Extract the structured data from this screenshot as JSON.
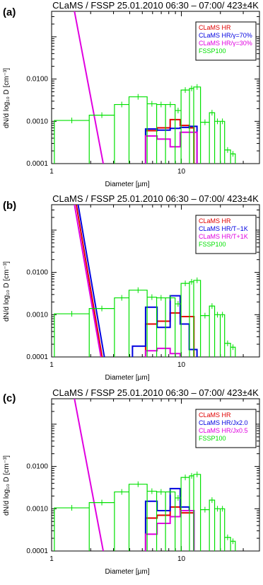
{
  "chart_data": [
    {
      "type": "line",
      "panel_label": "(a)",
      "title": "CLaMS / FSSP 25.01.2010 06:30 – 07:00/ 423±4K",
      "xlabel": "Diameter [µm]",
      "ylabel": "dN/d log₁₀ D [cm⁻³]",
      "xscale": "log",
      "yscale": "log",
      "xlim": [
        1,
        40
      ],
      "ylim": [
        0.0001,
        0.4
      ],
      "xticks": [
        {
          "value": 1,
          "label": "1"
        },
        {
          "value": 10,
          "label": "10"
        }
      ],
      "yticks": [
        {
          "value": 0.0001,
          "label": "0.0001"
        },
        {
          "value": 0.001,
          "label": "0.0010"
        },
        {
          "value": 0.01,
          "label": "0.0100"
        }
      ],
      "legend_position": "top-right",
      "series": [
        {
          "name": "CLaMS HR",
          "color": "#e00000",
          "kind": "step",
          "x": [
            5.3,
            5.3,
            6.5,
            6.5,
            8.2,
            8.2,
            9.8,
            9.8,
            11.5,
            11.5,
            12.5,
            12.5
          ],
          "y": [
            0.0001,
            0.0006,
            0.0006,
            0.0007,
            0.0007,
            0.0011,
            0.0011,
            0.0008,
            0.0008,
            0.0007,
            0.0007,
            0.0001
          ]
        },
        {
          "name": "CLaMS HR/γ=70%",
          "color": "#0000e0",
          "kind": "step",
          "x": [
            5.3,
            5.3,
            6.5,
            6.5,
            8.2,
            8.2,
            9.8,
            9.8,
            11.5,
            11.5,
            13.2,
            13.2
          ],
          "y": [
            0.0001,
            0.00066,
            0.00066,
            0.00062,
            0.00062,
            0.00068,
            0.00068,
            0.00072,
            0.00072,
            0.00076,
            0.00076,
            0.0001
          ]
        },
        {
          "name": "CLaMS HR/γ=30%",
          "color": "#e000e0",
          "kind": "step_and_curve",
          "curve_x": [
            1.5,
            2.5
          ],
          "curve_y": [
            0.4,
            0.0001
          ],
          "x": [
            5.3,
            5.3,
            6.5,
            6.5,
            8.2,
            8.2,
            9.8,
            9.8,
            11.5,
            11.5,
            13.2,
            13.2
          ],
          "y": [
            0.0001,
            0.00045,
            0.00045,
            0.00038,
            0.00038,
            0.00025,
            0.00025,
            0.00055,
            0.00055,
            0.00055,
            0.00055,
            0.0001
          ]
        },
        {
          "name": "FSSP100",
          "color": "#00e000",
          "kind": "fssp"
        }
      ]
    },
    {
      "type": "line",
      "panel_label": "(b)",
      "title": "CLaMS / FSSP 25.01.2010 06:30 – 07:00/ 423±4K",
      "xlabel": "Diameter [µm]",
      "ylabel": "dN/d log₁₀ D [cm⁻³]",
      "xscale": "log",
      "yscale": "log",
      "xlim": [
        1,
        40
      ],
      "ylim": [
        0.0001,
        0.4
      ],
      "xticks": [
        {
          "value": 1,
          "label": "1"
        },
        {
          "value": 10,
          "label": "10"
        }
      ],
      "yticks": [
        {
          "value": 0.0001,
          "label": "0.0001"
        },
        {
          "value": 0.001,
          "label": "0.0010"
        },
        {
          "value": 0.01,
          "label": "0.0100"
        }
      ],
      "legend_position": "top-right",
      "series": [
        {
          "name": "CLaMS HR",
          "color": "#e00000",
          "kind": "step_and_curve",
          "curve_x": [
            1.55,
            2.45
          ],
          "curve_y": [
            0.4,
            0.0001
          ],
          "x": [
            5.3,
            5.3,
            6.5,
            6.5,
            8.2,
            8.2,
            9.8,
            9.8,
            11.5,
            11.5,
            12.5,
            12.5
          ],
          "y": [
            0.0001,
            0.0006,
            0.0006,
            0.0007,
            0.0007,
            0.0011,
            0.0011,
            0.0009,
            0.0009,
            0.0009,
            0.0009,
            0.0001
          ]
        },
        {
          "name": "CLaMS HR/T−1K",
          "color": "#0000e0",
          "kind": "step_and_curve",
          "curve_x": [
            1.6,
            2.55
          ],
          "curve_y": [
            0.4,
            0.0001
          ],
          "x": [
            4.2,
            4.2,
            5.3,
            5.3,
            6.5,
            6.5,
            8.2,
            8.2,
            9.8,
            9.8,
            11.5,
            11.5,
            13.2,
            13.2
          ],
          "y": [
            0.0001,
            0.00018,
            0.00018,
            0.0015,
            0.0015,
            0.0005,
            0.0005,
            0.0028,
            0.0028,
            0.0006,
            0.0006,
            0.00015,
            0.00015,
            0.0001
          ]
        },
        {
          "name": "CLaMS HR/T+1K",
          "color": "#e000e0",
          "kind": "step_and_curve",
          "curve_x": [
            1.5,
            2.4
          ],
          "curve_y": [
            0.4,
            0.0001
          ],
          "x": [
            5.3,
            5.3,
            6.5,
            6.5,
            8.2,
            8.2,
            9.8,
            9.8
          ],
          "y": [
            0.0001,
            0.00014,
            0.00014,
            0.00016,
            0.00016,
            0.00012,
            0.00012,
            0.0001
          ]
        },
        {
          "name": "FSSP100",
          "color": "#00e000",
          "kind": "fssp"
        }
      ]
    },
    {
      "type": "line",
      "panel_label": "(c)",
      "title": "CLaMS / FSSP 25.01.2010 06:30 – 07:00/ 423±4K",
      "xlabel": "Diameter [µm]",
      "ylabel": "dN/d log₁₀ D [cm⁻³]",
      "xscale": "log",
      "yscale": "log",
      "xlim": [
        1,
        40
      ],
      "ylim": [
        0.0001,
        0.4
      ],
      "xticks": [
        {
          "value": 1,
          "label": "1"
        },
        {
          "value": 10,
          "label": "10"
        }
      ],
      "yticks": [
        {
          "value": 0.0001,
          "label": "0.0001"
        },
        {
          "value": 0.001,
          "label": "0.0010"
        },
        {
          "value": 0.01,
          "label": "0.0100"
        }
      ],
      "legend_position": "top-right",
      "series": [
        {
          "name": "CLaMS HR",
          "color": "#e00000",
          "kind": "step",
          "x": [
            5.3,
            5.3,
            6.5,
            6.5,
            8.2,
            8.2,
            9.8,
            9.8,
            11.5,
            11.5,
            12.5,
            12.5
          ],
          "y": [
            0.0001,
            0.0006,
            0.0006,
            0.0007,
            0.0007,
            0.0011,
            0.0011,
            0.0008,
            0.0008,
            0.0008,
            0.0008,
            0.0001
          ]
        },
        {
          "name": "CLaMS HR/Jx2.0",
          "color": "#0000e0",
          "kind": "step",
          "x": [
            5.3,
            5.3,
            6.5,
            6.5,
            8.2,
            8.2,
            9.8,
            9.8,
            11.5,
            11.5,
            12.5,
            12.5
          ],
          "y": [
            0.0001,
            0.0015,
            0.0015,
            0.0009,
            0.0009,
            0.003,
            0.003,
            0.0011,
            0.0011,
            0.0009,
            0.0009,
            0.0001
          ]
        },
        {
          "name": "CLaMS HR/Jx0.5",
          "color": "#e000e0",
          "kind": "step_and_curve",
          "curve_x": [
            1.5,
            2.5
          ],
          "curve_y": [
            0.4,
            0.0001
          ],
          "x": [
            5.3,
            5.3,
            6.5,
            6.5,
            8.2,
            8.2,
            9.8,
            9.8,
            11.5,
            11.5,
            12.5,
            12.5
          ],
          "y": [
            0.0001,
            0.00025,
            0.00025,
            0.00045,
            0.00045,
            0.00065,
            0.00065,
            0.0009,
            0.0009,
            0.0009,
            0.0009,
            0.0001
          ]
        },
        {
          "name": "FSSP100",
          "color": "#00e000",
          "kind": "fssp"
        }
      ]
    }
  ],
  "fssp100": {
    "color": "#00e000",
    "bins": [
      {
        "lo": 1.05,
        "hi": 1.95,
        "y": 0.00105
      },
      {
        "lo": 1.95,
        "hi": 3.05,
        "y": 0.0014
      },
      {
        "lo": 3.05,
        "hi": 3.95,
        "y": 0.0025
      },
      {
        "lo": 3.95,
        "hi": 5.45,
        "y": 0.0038
      },
      {
        "lo": 5.45,
        "hi": 6.45,
        "y": 0.0026
      },
      {
        "lo": 6.45,
        "hi": 7.55,
        "y": 0.0025
      },
      {
        "lo": 7.55,
        "hi": 8.95,
        "y": 0.0025
      },
      {
        "lo": 8.95,
        "hi": 9.95,
        "y": 0.0018
      },
      {
        "lo": 9.95,
        "hi": 11.55,
        "y": 0.0055
      },
      {
        "lo": 11.55,
        "hi": 12.45,
        "y": 0.006
      },
      {
        "lo": 12.45,
        "hi": 14.05,
        "y": 0.0065
      },
      {
        "lo": 14.05,
        "hi": 16.45,
        "y": 0.00095
      },
      {
        "lo": 16.45,
        "hi": 18.05,
        "y": 0.0016
      },
      {
        "lo": 18.05,
        "hi": 19.95,
        "y": 0.001
      },
      {
        "lo": 19.95,
        "hi": 21.55,
        "y": 0.001
      },
      {
        "lo": 21.55,
        "hi": 23.95,
        "y": 0.00021
      },
      {
        "lo": 23.95,
        "hi": 26.05,
        "y": 0.00017
      }
    ]
  }
}
